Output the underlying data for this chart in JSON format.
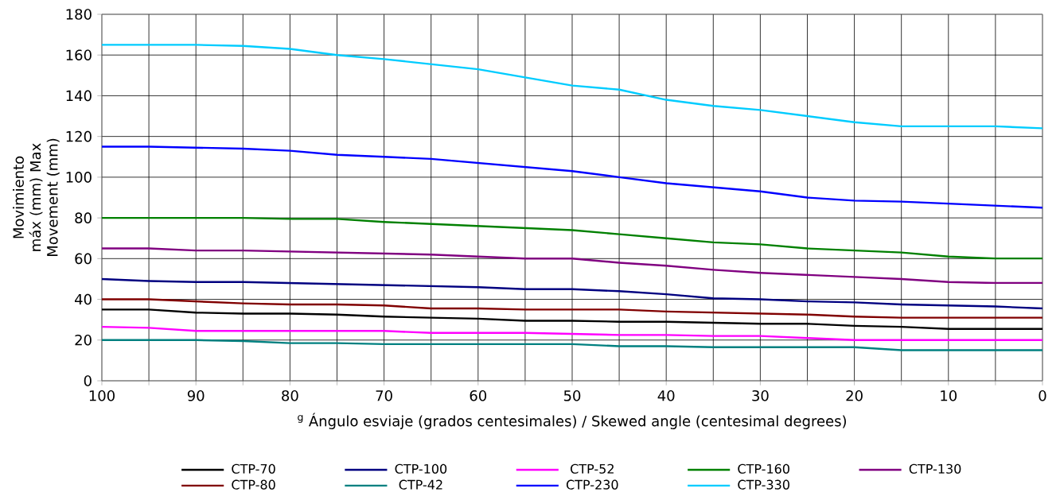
{
  "chart_data": {
    "type": "line",
    "xlabel": "$^{g}$ Ángulo esviaje (grados centesimales) /  Skewed angle (centesimal degrees)",
    "ylabel": "Movimiento máx (mm) Max Movement (mm)",
    "x": [
      100,
      95,
      90,
      85,
      80,
      75,
      70,
      65,
      60,
      55,
      50,
      45,
      40,
      35,
      30,
      25,
      20,
      15,
      10,
      5,
      0
    ],
    "xlim": [
      100,
      0
    ],
    "xticks": [
      100,
      {
        "value": 95,
        "label": null
      },
      90,
      {
        "value": 85,
        "label": null
      },
      80,
      {
        "value": 75,
        "label": null
      },
      70,
      {
        "value": 65,
        "label": null
      },
      60,
      {
        "value": 55,
        "label": null
      },
      50,
      {
        "value": 45,
        "label": null
      },
      40,
      {
        "value": 35,
        "label": null
      },
      30,
      {
        "value": 25,
        "label": null
      },
      20,
      {
        "value": 15,
        "label": null
      },
      10,
      {
        "value": 5,
        "label": null
      },
      0
    ],
    "ylim": [
      0,
      180
    ],
    "yticks": [
      0,
      20,
      40,
      60,
      80,
      100,
      120,
      140,
      160,
      180
    ],
    "grid": true,
    "legend": "bottom",
    "marker": "none",
    "line_style": "solid",
    "series": [
      {
        "name": "CTP-70",
        "color": "#000000",
        "values": [
          35,
          35,
          33.5,
          33,
          33,
          32.5,
          31.5,
          31,
          30.5,
          29.5,
          29.5,
          29,
          29,
          28.5,
          28,
          28,
          27,
          26.5,
          25.5,
          25.5,
          25.5
        ]
      },
      {
        "name": "CTP-100",
        "color": "#000080",
        "values": [
          50,
          49,
          48.5,
          48.5,
          48,
          47.5,
          47,
          46.5,
          46,
          45,
          45,
          44,
          42.5,
          40.5,
          40,
          39,
          38.5,
          37.5,
          37,
          36.5,
          35.5
        ]
      },
      {
        "name": "CTP-52",
        "color": "#ff00ff",
        "values": [
          26.5,
          26,
          24.5,
          24.5,
          24.5,
          24.5,
          24.5,
          23.5,
          23.5,
          23.5,
          23,
          22.5,
          22.5,
          22,
          22,
          21,
          20,
          20,
          20,
          20,
          20
        ]
      },
      {
        "name": "CTP-160",
        "color": "#008000",
        "values": [
          80,
          80,
          80,
          80,
          79.5,
          79.5,
          78,
          77,
          76,
          75,
          74,
          72,
          70,
          68,
          67,
          65,
          64,
          63,
          61,
          60,
          60
        ]
      },
      {
        "name": "CTP-130",
        "color": "#800080",
        "values": [
          65,
          65,
          64,
          64,
          63.5,
          63,
          62.5,
          62,
          61,
          60,
          60,
          58,
          56.5,
          54.5,
          53,
          52,
          51,
          50,
          48.5,
          48,
          48
        ]
      },
      {
        "name": "CTP-80",
        "color": "#800000",
        "values": [
          40,
          40,
          39,
          38,
          37.5,
          37.5,
          37,
          35.5,
          35.5,
          35,
          35,
          35,
          34,
          33.5,
          33,
          32.5,
          31.5,
          31,
          31,
          31,
          31
        ]
      },
      {
        "name": "CTP-42",
        "color": "#008080",
        "values": [
          20,
          20,
          20,
          19.5,
          18.5,
          18.5,
          18,
          18,
          18,
          18,
          18,
          17,
          17,
          16.5,
          16.5,
          16.5,
          16.5,
          15,
          15,
          15,
          15
        ]
      },
      {
        "name": "CTP-230",
        "color": "#0000ff",
        "values": [
          115,
          115,
          114.5,
          114,
          113,
          111,
          110,
          109,
          107,
          105,
          103,
          100,
          97,
          95,
          93,
          90,
          88.5,
          88,
          87,
          86,
          85
        ]
      },
      {
        "name": "CTP-330",
        "color": "#00ccff",
        "values": [
          165,
          165,
          165,
          164.5,
          163,
          160,
          158,
          155.5,
          153,
          149,
          145,
          143,
          138,
          135,
          133,
          130,
          127,
          125,
          125,
          125,
          124
        ]
      }
    ]
  }
}
